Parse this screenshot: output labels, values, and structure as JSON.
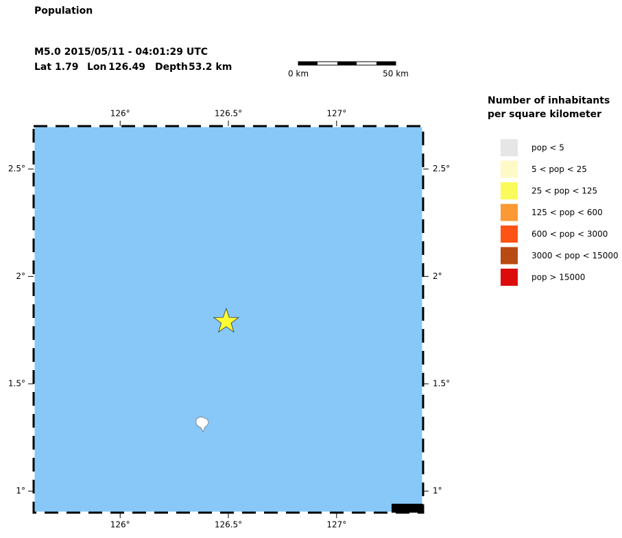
{
  "header": {
    "title": "Population",
    "event": "M5.0  2015/05/11 - 04:01:29 UTC",
    "lat_label": "Lat",
    "lat": 1.79,
    "lon_label": "Lon",
    "lon": 126.49,
    "depth_label": "Depth",
    "depth": "53.2 km"
  },
  "scale": {
    "labels": [
      "0 km",
      "50 km"
    ]
  },
  "map": {
    "xlim": [
      125.6,
      127.4
    ],
    "ylim": [
      0.9,
      2.7
    ],
    "water_color": "#87c8f8",
    "epicenter_color": "#ffff33",
    "xticks": [
      {
        "value": 126,
        "label": "126°"
      },
      {
        "value": 126.5,
        "label": "126.5°"
      },
      {
        "value": 127,
        "label": "127°"
      }
    ],
    "yticks": [
      {
        "value": 1,
        "label": "1°"
      },
      {
        "value": 1.5,
        "label": "1.5°"
      },
      {
        "value": 2,
        "label": "2°"
      },
      {
        "value": 2.5,
        "label": "2.5°"
      }
    ],
    "credit": "EMSC"
  },
  "legend": {
    "title": [
      "Number of inhabitants",
      "per square kilometer"
    ],
    "items": [
      {
        "label": "pop < 5",
        "color": "#e6e6e6"
      },
      {
        "label": "5 < pop < 25",
        "color": "#fdfac8"
      },
      {
        "label": "25 < pop < 125",
        "color": "#fafa5a"
      },
      {
        "label": "125 < pop < 600",
        "color": "#fb9a35"
      },
      {
        "label": "600 < pop < 3000",
        "color": "#fd5415"
      },
      {
        "label": "3000 < pop < 15000",
        "color": "#b84a14"
      },
      {
        "label": "pop > 15000",
        "color": "#dc0c0c"
      }
    ]
  }
}
